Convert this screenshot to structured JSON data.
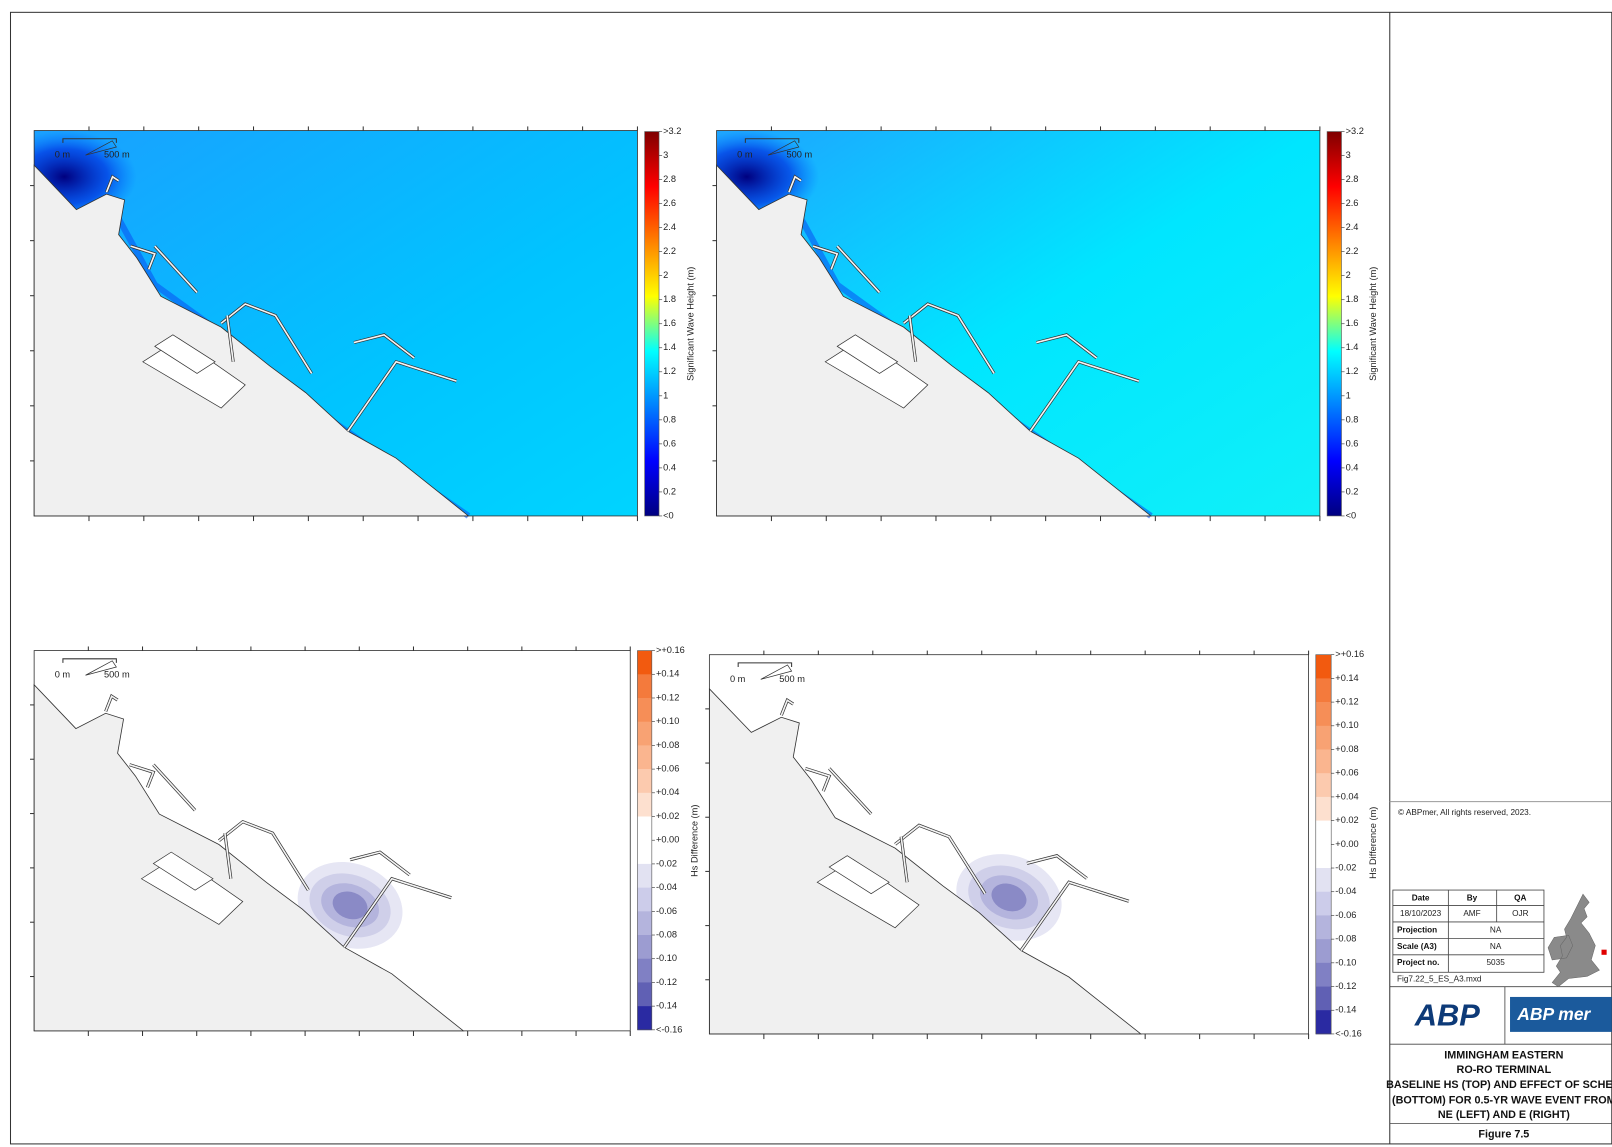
{
  "panels": [
    {
      "scalebar": [
        "0 m",
        "500 m"
      ],
      "colorbar": {
        "label": "Significant Wave Height (m)",
        "ticks": [
          ">3.2",
          "3",
          "2.8",
          "2.6",
          "2.4",
          "2.2",
          "2",
          "1.8",
          "1.6",
          "1.4",
          "1.2",
          "1",
          "0.8",
          "0.6",
          "0.4",
          "0.2",
          "<0"
        ],
        "colors": [
          "#7f0000",
          "#ff0000",
          "#ff8000",
          "#ffff00",
          "#00ffff",
          "#0080ff",
          "#0000ff",
          "#00007f"
        ],
        "continuous": true
      }
    },
    {
      "scalebar": [
        "0 m",
        "500 m"
      ],
      "colorbar": {
        "label": "Significant Wave Height (m)",
        "ticks": [
          ">3.2",
          "3",
          "2.8",
          "2.6",
          "2.4",
          "2.2",
          "2",
          "1.8",
          "1.6",
          "1.4",
          "1.2",
          "1",
          "0.8",
          "0.6",
          "0.4",
          "0.2",
          "<0"
        ],
        "colors": [
          "#7f0000",
          "#ff0000",
          "#ff8000",
          "#ffff00",
          "#00ffff",
          "#0080ff",
          "#0000ff",
          "#00007f"
        ],
        "continuous": true
      }
    },
    {
      "scalebar": [
        "0 m",
        "500 m"
      ],
      "colorbar": {
        "label": "Hs Difference (m)",
        "ticks": [
          ">+0.16",
          "+0.14",
          "+0.12",
          "+0.10",
          "+0.08",
          "+0.06",
          "+0.04",
          "+0.02",
          "+0.00",
          "-0.02",
          "-0.04",
          "-0.06",
          "-0.08",
          "-0.10",
          "-0.12",
          "-0.14",
          "<-0.16"
        ],
        "colors": [
          "#f25a0f",
          "#f47a3c",
          "#f68e57",
          "#f8a273",
          "#fab58f",
          "#fccaae",
          "#fde0cf",
          "#ffffff",
          "#ffffff",
          "#e2e2f2",
          "#ccccea",
          "#b4b4dd",
          "#9c9cd1",
          "#8080c4",
          "#6060b4",
          "#2a2aa2"
        ],
        "continuous": false
      }
    },
    {
      "scalebar": [
        "0 m",
        "500 m"
      ],
      "colorbar": {
        "label": "Hs Difference (m)",
        "ticks": [
          ">+0.16",
          "+0.14",
          "+0.12",
          "+0.10",
          "+0.08",
          "+0.06",
          "+0.04",
          "+0.02",
          "+0.00",
          "-0.02",
          "-0.04",
          "-0.06",
          "-0.08",
          "-0.10",
          "-0.12",
          "-0.14",
          "<-0.16"
        ],
        "colors": [
          "#f25a0f",
          "#f47a3c",
          "#f68e57",
          "#f8a273",
          "#fab58f",
          "#fccaae",
          "#fde0cf",
          "#ffffff",
          "#ffffff",
          "#e2e2f2",
          "#ccccea",
          "#b4b4dd",
          "#9c9cd1",
          "#8080c4",
          "#6060b4",
          "#2a2aa2"
        ],
        "continuous": false
      }
    }
  ],
  "title_block": {
    "copyright": "© ABPmer, All rights reserved, 2023.",
    "table": {
      "header": [
        "Date",
        "By",
        "QA"
      ],
      "row1": [
        "18/10/2023",
        "AMF",
        "OJR"
      ],
      "projection": [
        "Projection",
        "NA"
      ],
      "scale": [
        "Scale (A3)",
        "NA"
      ],
      "project": [
        "Project no.",
        "5035"
      ],
      "file": "Fig7.22_5_ES_A3.mxd"
    },
    "logos": [
      "ABP",
      "ABP mer"
    ],
    "title": [
      "IMMINGHAM EASTERN",
      "RO-RO TERMINAL",
      "BASELINE HS (TOP) AND EFFECT OF SCHEM",
      "(BOTTOM) FOR 0.5-YR WAVE EVENT FROM",
      "NE (LEFT) AND E (RIGHT)"
    ],
    "figure": "Figure 7.5"
  }
}
